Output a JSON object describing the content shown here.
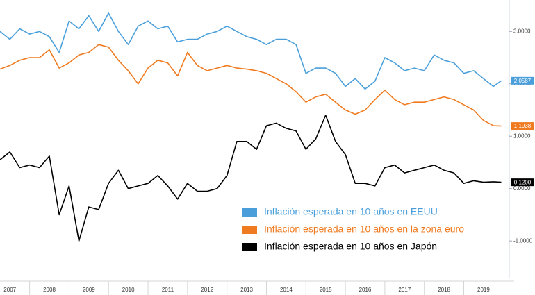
{
  "chart_data": {
    "type": "line",
    "x": [
      2007.25,
      2007.5,
      2007.75,
      2008,
      2008.25,
      2008.5,
      2008.75,
      2009,
      2009.25,
      2009.5,
      2009.75,
      2010,
      2010.25,
      2010.5,
      2010.75,
      2011,
      2011.25,
      2011.5,
      2011.75,
      2012,
      2012.25,
      2012.5,
      2012.75,
      2013,
      2013.25,
      2013.5,
      2013.75,
      2014,
      2014.25,
      2014.5,
      2014.75,
      2015,
      2015.25,
      2015.5,
      2015.75,
      2016,
      2016.25,
      2016.5,
      2016.75,
      2017,
      2017.25,
      2017.5,
      2017.75,
      2018,
      2018.25,
      2018.5,
      2018.75,
      2019,
      2019.25,
      2019.5,
      2019.75,
      2019.95
    ],
    "series": [
      {
        "name": "Inflación esperada en 10 años en EEUU",
        "color": "#4a9fdb",
        "last_label": "2.0587",
        "values": [
          3.0,
          2.85,
          3.05,
          2.95,
          3.0,
          2.9,
          2.6,
          3.2,
          3.05,
          3.3,
          3.0,
          3.35,
          3.0,
          2.75,
          3.1,
          3.2,
          3.05,
          3.1,
          2.8,
          2.85,
          2.85,
          2.95,
          3.0,
          3.1,
          3.0,
          2.9,
          2.85,
          2.75,
          2.85,
          2.85,
          2.75,
          2.2,
          2.3,
          2.3,
          2.2,
          1.95,
          2.1,
          1.9,
          2.05,
          2.5,
          2.4,
          2.25,
          2.3,
          2.25,
          2.55,
          2.45,
          2.4,
          2.2,
          2.25,
          2.1,
          1.95,
          2.0587
        ]
      },
      {
        "name": "Inflación esperada en 10 años en la zona euro",
        "color": "#f07a1f",
        "last_label": "1.1938",
        "values": [
          2.28,
          2.35,
          2.45,
          2.5,
          2.5,
          2.65,
          2.3,
          2.4,
          2.55,
          2.6,
          2.75,
          2.7,
          2.45,
          2.25,
          2.0,
          2.3,
          2.45,
          2.4,
          2.15,
          2.6,
          2.35,
          2.25,
          2.3,
          2.35,
          2.3,
          2.28,
          2.25,
          2.2,
          2.1,
          2.0,
          1.85,
          1.65,
          1.75,
          1.8,
          1.65,
          1.5,
          1.42,
          1.5,
          1.7,
          1.88,
          1.7,
          1.6,
          1.65,
          1.65,
          1.7,
          1.75,
          1.7,
          1.6,
          1.5,
          1.3,
          1.2,
          1.1938
        ]
      },
      {
        "name": "Inflación esperada en 10 años en Japón",
        "color": "#000000",
        "last_label": "0.1200",
        "values": [
          0.55,
          0.7,
          0.4,
          0.45,
          0.4,
          0.62,
          -0.5,
          0.05,
          -1.0,
          -0.35,
          -0.4,
          0.1,
          0.35,
          0.0,
          0.05,
          0.1,
          0.25,
          0.05,
          -0.2,
          0.1,
          -0.05,
          -0.05,
          0.0,
          0.25,
          0.9,
          0.9,
          0.75,
          1.2,
          1.25,
          1.15,
          1.1,
          0.75,
          0.95,
          1.4,
          0.9,
          0.65,
          0.1,
          0.1,
          0.05,
          0.4,
          0.45,
          0.3,
          0.35,
          0.4,
          0.45,
          0.35,
          0.3,
          0.1,
          0.15,
          0.12,
          0.13,
          0.12
        ]
      }
    ],
    "xlim": [
      2007.25,
      2020.1
    ],
    "xticks": [
      2007,
      2008,
      2009,
      2010,
      2011,
      2012,
      2013,
      2014,
      2015,
      2016,
      2017,
      2018,
      2019
    ],
    "ylim": [
      -1.7,
      3.6
    ],
    "yticks": [
      {
        "value": -1,
        "label": "-1.0000"
      },
      {
        "value": 0,
        "label": "0.0000"
      },
      {
        "value": 1,
        "label": "1.0000"
      },
      {
        "value": 2,
        "label": "2.0000"
      },
      {
        "value": 3,
        "label": "3.0000"
      }
    ],
    "grid": false
  }
}
